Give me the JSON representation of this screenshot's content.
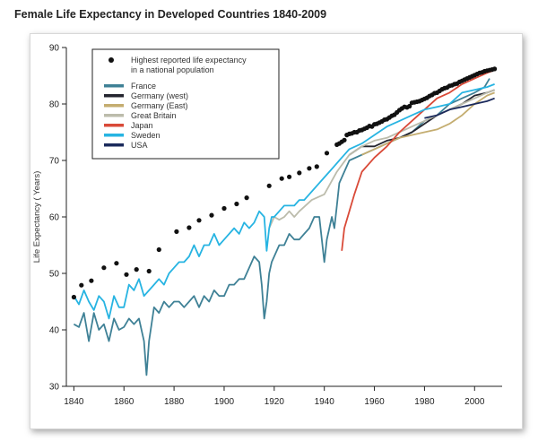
{
  "chart_data": {
    "type": "line",
    "title": "Female Life Expectancy in Developed Countries 1840-2009",
    "xlabel": "",
    "ylabel": "Life Expectancy ( Years)",
    "xlim": [
      1837,
      2011
    ],
    "ylim": [
      30,
      90
    ],
    "xticks": [
      "1840",
      "1860",
      "1880",
      "1900",
      "1920",
      "1940",
      "1960",
      "1980",
      "2000"
    ],
    "yticks": [
      "30",
      "40",
      "50",
      "60",
      "70",
      "80",
      "90"
    ],
    "legend_position": "top-left",
    "scatter": {
      "name": "Highest reported life expectancy in a national population",
      "color": "#111111",
      "points": [
        [
          1840,
          45.8
        ],
        [
          1843,
          47.9
        ],
        [
          1847,
          48.7
        ],
        [
          1852,
          51.0
        ],
        [
          1857,
          51.8
        ],
        [
          1861,
          49.8
        ],
        [
          1865,
          50.7
        ],
        [
          1870,
          50.4
        ],
        [
          1874,
          54.2
        ],
        [
          1881,
          57.4
        ],
        [
          1886,
          58.1
        ],
        [
          1890,
          59.4
        ],
        [
          1895,
          60.3
        ],
        [
          1900,
          61.5
        ],
        [
          1905,
          62.3
        ],
        [
          1909,
          63.4
        ],
        [
          1918,
          65.5
        ],
        [
          1923,
          66.8
        ],
        [
          1926,
          67.1
        ],
        [
          1930,
          67.8
        ],
        [
          1934,
          68.6
        ],
        [
          1937,
          68.9
        ],
        [
          1941,
          71.3
        ],
        [
          1945,
          72.8
        ],
        [
          1946,
          73.0
        ],
        [
          1947,
          73.3
        ],
        [
          1948,
          73.6
        ],
        [
          1949,
          74.5
        ],
        [
          1950,
          74.7
        ],
        [
          1951,
          74.8
        ],
        [
          1952,
          75.0
        ],
        [
          1953,
          75.0
        ],
        [
          1954,
          75.3
        ],
        [
          1955,
          75.4
        ],
        [
          1956,
          75.6
        ],
        [
          1957,
          75.8
        ],
        [
          1958,
          76.1
        ],
        [
          1959,
          76.0
        ],
        [
          1960,
          76.4
        ],
        [
          1961,
          76.5
        ],
        [
          1962,
          76.7
        ],
        [
          1963,
          76.9
        ],
        [
          1964,
          77.2
        ],
        [
          1965,
          77.3
        ],
        [
          1966,
          77.6
        ],
        [
          1967,
          77.9
        ],
        [
          1968,
          78.1
        ],
        [
          1969,
          78.5
        ],
        [
          1970,
          78.9
        ],
        [
          1971,
          79.2
        ],
        [
          1972,
          79.5
        ],
        [
          1973,
          79.4
        ],
        [
          1974,
          79.6
        ],
        [
          1975,
          80.2
        ],
        [
          1976,
          80.3
        ],
        [
          1977,
          80.4
        ],
        [
          1978,
          80.5
        ],
        [
          1979,
          80.7
        ],
        [
          1980,
          80.9
        ],
        [
          1981,
          81.1
        ],
        [
          1982,
          81.4
        ],
        [
          1983,
          81.6
        ],
        [
          1984,
          81.9
        ],
        [
          1985,
          82.0
        ],
        [
          1986,
          82.3
        ],
        [
          1987,
          82.6
        ],
        [
          1988,
          82.8
        ],
        [
          1989,
          82.9
        ],
        [
          1990,
          83.2
        ],
        [
          1991,
          83.3
        ],
        [
          1992,
          83.5
        ],
        [
          1993,
          83.6
        ],
        [
          1994,
          83.9
        ],
        [
          1995,
          84.1
        ],
        [
          1996,
          84.3
        ],
        [
          1997,
          84.5
        ],
        [
          1998,
          84.7
        ],
        [
          1999,
          84.9
        ],
        [
          2000,
          85.1
        ],
        [
          2001,
          85.3
        ],
        [
          2002,
          85.5
        ],
        [
          2003,
          85.6
        ],
        [
          2004,
          85.8
        ],
        [
          2005,
          85.9
        ],
        [
          2006,
          86.0
        ],
        [
          2007,
          86.1
        ],
        [
          2008,
          86.2
        ]
      ]
    },
    "series": [
      {
        "name": "France",
        "color": "#3f8196",
        "x": [
          1840,
          1842,
          1844,
          1846,
          1848,
          1850,
          1852,
          1854,
          1856,
          1858,
          1860,
          1862,
          1864,
          1866,
          1868,
          1869,
          1870,
          1871,
          1872,
          1874,
          1876,
          1878,
          1880,
          1882,
          1884,
          1886,
          1888,
          1890,
          1892,
          1894,
          1896,
          1898,
          1900,
          1902,
          1904,
          1906,
          1908,
          1910,
          1912,
          1914,
          1915,
          1916,
          1917,
          1918,
          1919,
          1920,
          1922,
          1924,
          1926,
          1928,
          1930,
          1932,
          1934,
          1936,
          1938,
          1940,
          1941,
          1942,
          1943,
          1944,
          1945,
          1946,
          1948,
          1950,
          1955,
          1960,
          1965,
          1970,
          1975,
          1980,
          1985,
          1990,
          1995,
          2000,
          2004,
          2006
        ],
        "y": [
          41,
          40.5,
          43,
          38,
          43,
          40,
          41,
          38,
          42,
          40,
          40.5,
          42,
          41,
          42,
          38,
          32,
          38,
          41,
          44,
          43,
          45,
          44,
          45,
          45,
          44,
          45,
          46,
          44,
          46,
          45,
          47,
          46,
          46,
          48,
          48,
          49,
          49,
          51,
          53,
          52,
          48,
          42,
          45,
          50,
          52,
          53,
          55,
          55,
          57,
          56,
          56,
          57,
          58,
          60,
          60,
          52,
          56,
          58,
          60,
          58,
          62,
          66,
          68,
          70,
          71,
          72,
          73,
          74,
          75,
          77,
          78,
          80,
          81,
          82,
          83,
          84.5
        ]
      },
      {
        "name": "Germany (west)",
        "color": "#24252f",
        "x": [
          1950,
          1955,
          1960,
          1965,
          1970,
          1975,
          1980,
          1985,
          1990,
          1995,
          2000,
          2005,
          2008
        ],
        "y": [
          71,
          72.5,
          72.5,
          73.5,
          74,
          75,
          76.5,
          78,
          79,
          80,
          81.5,
          82,
          82.5
        ]
      },
      {
        "name": "Germany (East)",
        "color": "#c4ad70",
        "x": [
          1955,
          1960,
          1965,
          1970,
          1975,
          1980,
          1985,
          1990,
          1995,
          2000,
          2005,
          2008
        ],
        "y": [
          71,
          72,
          73,
          74,
          74.5,
          75,
          75.5,
          76.5,
          78,
          80,
          81.5,
          82
        ]
      },
      {
        "name": "Great Britain",
        "color": "#bcbcac",
        "x": [
          1918,
          1920,
          1922,
          1924,
          1926,
          1928,
          1930,
          1935,
          1940,
          1945,
          1950,
          1955,
          1960,
          1965,
          1970,
          1975,
          1980,
          1985,
          1990,
          1995,
          2000,
          2005,
          2008
        ],
        "y": [
          58,
          60,
          59.5,
          60,
          61,
          60,
          61,
          63,
          64,
          68,
          71,
          72.5,
          73.5,
          74,
          75,
          76,
          77,
          78,
          79,
          80,
          81,
          82,
          82.5
        ]
      },
      {
        "name": "Japan",
        "color": "#d94a38",
        "x": [
          1947,
          1948,
          1950,
          1952,
          1955,
          1960,
          1965,
          1970,
          1975,
          1980,
          1985,
          1990,
          1995,
          2000,
          2005,
          2008
        ],
        "y": [
          54,
          58,
          61,
          64,
          68,
          70.5,
          72.5,
          75,
          77,
          79,
          81,
          82,
          83.5,
          84.5,
          85.5,
          86
        ]
      },
      {
        "name": "Sweden",
        "color": "#27b4e2",
        "x": [
          1840,
          1842,
          1844,
          1846,
          1848,
          1850,
          1852,
          1854,
          1856,
          1858,
          1860,
          1862,
          1864,
          1866,
          1868,
          1870,
          1872,
          1874,
          1876,
          1878,
          1880,
          1882,
          1884,
          1886,
          1888,
          1890,
          1892,
          1894,
          1896,
          1898,
          1900,
          1902,
          1904,
          1906,
          1908,
          1910,
          1912,
          1914,
          1916,
          1917,
          1918,
          1919,
          1920,
          1922,
          1924,
          1926,
          1928,
          1930,
          1932,
          1934,
          1936,
          1938,
          1940,
          1942,
          1944,
          1946,
          1948,
          1950,
          1955,
          1960,
          1965,
          1970,
          1975,
          1980,
          1985,
          1990,
          1995,
          2000,
          2005,
          2008
        ],
        "y": [
          46,
          44.5,
          47,
          45,
          43.5,
          46,
          45,
          42,
          46,
          44,
          44,
          48,
          47,
          49,
          46,
          47,
          48,
          49,
          48,
          50,
          51,
          52,
          52,
          53,
          55,
          53,
          55,
          55,
          57,
          55,
          56,
          57,
          58,
          57,
          59,
          58,
          59,
          61,
          60,
          54,
          58,
          60,
          60,
          61,
          62,
          62,
          62,
          63,
          63,
          64,
          65,
          66,
          67,
          68,
          69,
          70,
          71,
          72,
          73,
          74.5,
          76,
          77,
          78,
          79,
          79.5,
          80,
          82,
          82.5,
          83,
          83.5
        ]
      },
      {
        "name": "USA",
        "color": "#1b2a5c",
        "x": [
          1980,
          1985,
          1990,
          1995,
          2000,
          2005,
          2008
        ],
        "y": [
          77.5,
          78,
          79,
          79.5,
          80,
          80.5,
          81
        ]
      }
    ]
  }
}
